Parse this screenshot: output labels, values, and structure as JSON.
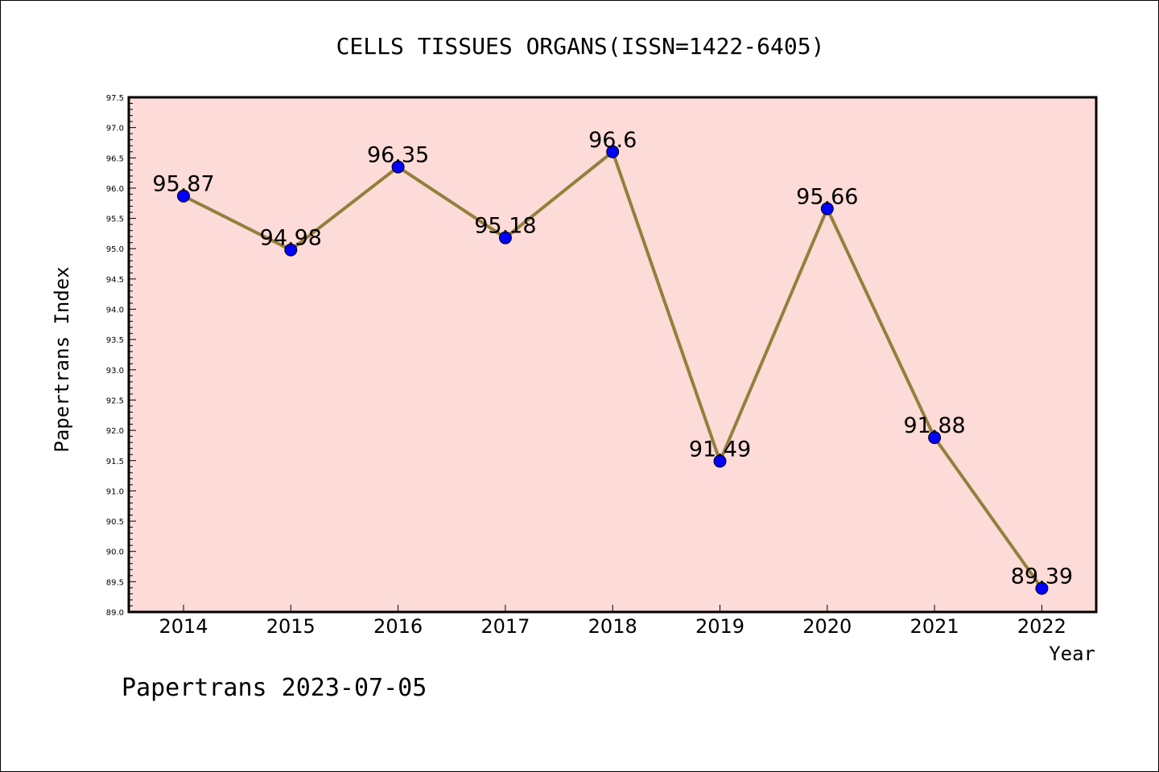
{
  "chart_data": {
    "type": "line",
    "title": "CELLS TISSUES ORGANS(ISSN=1422-6405)",
    "xlabel": "Year",
    "ylabel": "Papertrans Index",
    "categories": [
      "2014",
      "2015",
      "2016",
      "2017",
      "2018",
      "2019",
      "2020",
      "2021",
      "2022"
    ],
    "series": [
      {
        "values": [
          95.87,
          94.98,
          96.35,
          95.18,
          96.6,
          91.49,
          95.66,
          91.88,
          89.39
        ],
        "data_labels": [
          "95.87",
          "94.98",
          "96.35",
          "95.18",
          "96.6",
          "91.49",
          "95.66",
          "91.88",
          "89.39"
        ]
      }
    ],
    "ylim": [
      89.0,
      97.5
    ],
    "yticks": [
      "89.0",
      "89.5",
      "90.0",
      "90.5",
      "91.0",
      "91.5",
      "92.0",
      "92.5",
      "93.0",
      "93.5",
      "94.0",
      "94.5",
      "95.0",
      "95.5",
      "96.0",
      "96.5",
      "97.0",
      "97.5"
    ],
    "grid": false,
    "plot_background": "#fddbd8",
    "line_color": "#947f3c",
    "marker_color": "#0000ff"
  },
  "footer": {
    "text": "Papertrans 2023-07-05"
  }
}
